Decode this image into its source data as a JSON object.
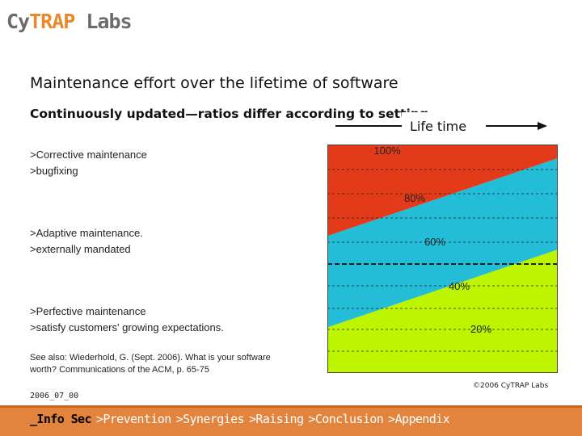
{
  "logo": {
    "part1": "Cy",
    "part2": "TRAP",
    "part3": " Labs"
  },
  "title": "Maintenance effort over the lifetime of software",
  "subtitle": "Continuously updated—ratios differ according to setting",
  "lifetime_label": "Life time",
  "categories": [
    {
      "line1": ">Corrective maintenance",
      "line2": ">bugfixing"
    },
    {
      "line1": ">Adaptive maintenance.",
      "line2": ">externally mandated"
    },
    {
      "line1": ">Perfective maintenance",
      "line2": ">satisfy customers' growing expectations."
    }
  ],
  "reference": "See also: Wiederhold, G. (Sept. 2006). What is your software worth? Communications of the ACM, p. 65-75",
  "date": "2006_07_00",
  "copyright": "©2006 CyTRAP Labs",
  "nav": [
    {
      "label": "_Info Sec",
      "active": true
    },
    {
      "label": ">Prevention",
      "active": false
    },
    {
      "label": ">Synergies",
      "active": false
    },
    {
      "label": ">Raising",
      "active": false
    },
    {
      "label": ">Conclusion",
      "active": false
    },
    {
      "label": ">Appendix",
      "active": false
    }
  ],
  "colors": {
    "corrective": "#e33b19",
    "adaptive": "#23bdd8",
    "perfective": "#bdf500",
    "footer": "#e2843e",
    "logo_accent": "#e8892c"
  },
  "chart_data": {
    "type": "area",
    "x_label": "Life time",
    "y_tick_labels": [
      "100%",
      "80%",
      "60%",
      "40%",
      "20%"
    ],
    "ylim": [
      0,
      100
    ],
    "x": [
      0,
      1
    ],
    "series": [
      {
        "name": "Corrective maintenance",
        "values": [
          40,
          6
        ]
      },
      {
        "name": "Adaptive maintenance",
        "values": [
          40,
          40
        ]
      },
      {
        "name": "Perfective maintenance",
        "values": [
          20,
          54
        ]
      }
    ]
  }
}
